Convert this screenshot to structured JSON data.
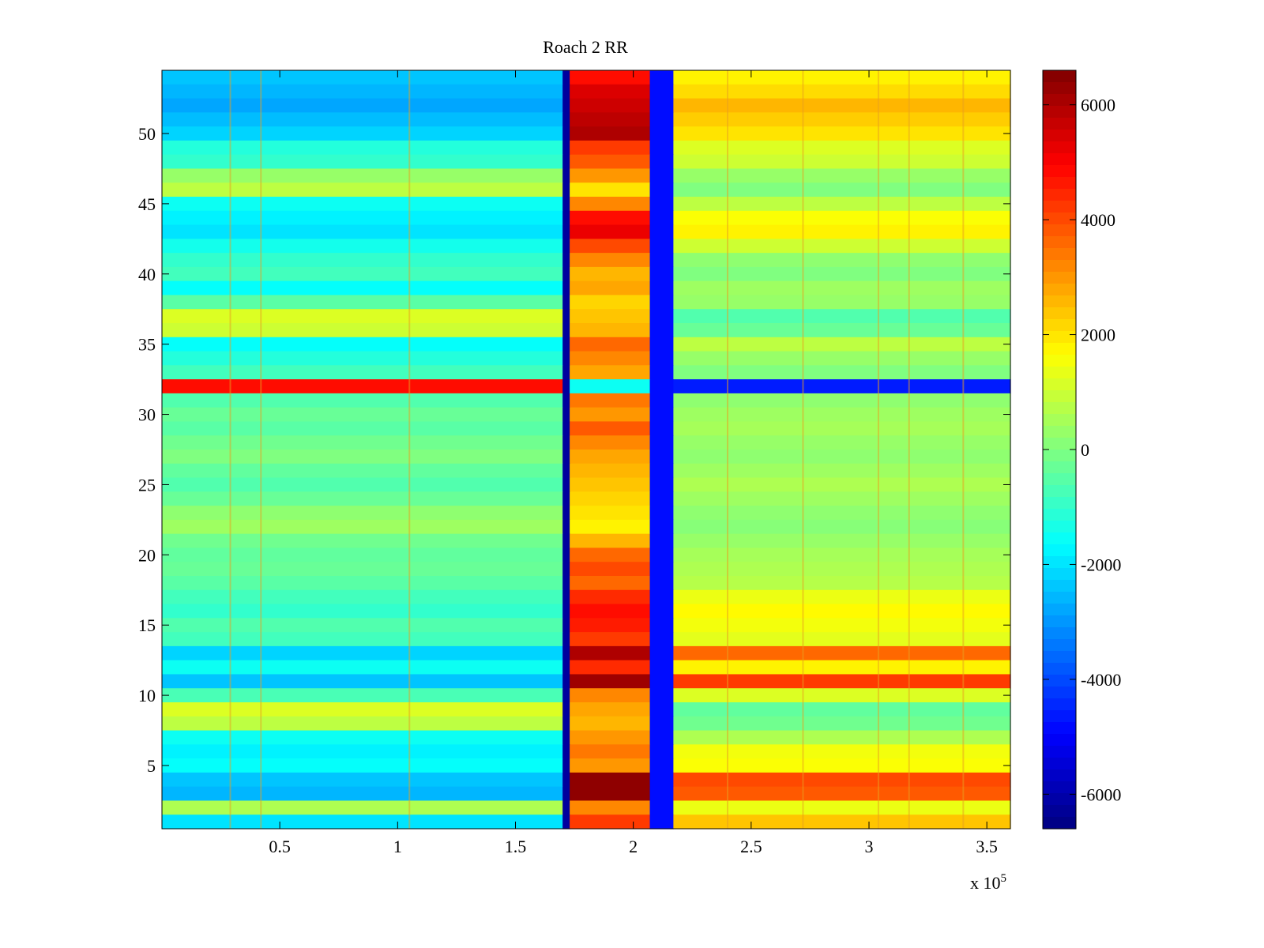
{
  "chart_data": {
    "type": "heatmap",
    "title": "Roach 2 RR",
    "xlabel": "",
    "ylabel": "",
    "x_exponent_label": "x 10",
    "x_exponent_power": "5",
    "xlim": [
      0,
      3.6
    ],
    "ylim": [
      0.5,
      54.5
    ],
    "x_ticks": [
      0.5,
      1,
      1.5,
      2,
      2.5,
      3,
      3.5
    ],
    "x_tick_labels": [
      "0.5",
      "1",
      "1.5",
      "2",
      "2.5",
      "3",
      "3.5"
    ],
    "y_ticks": [
      5,
      10,
      15,
      20,
      25,
      30,
      35,
      40,
      45,
      50
    ],
    "y_tick_labels": [
      "5",
      "10",
      "15",
      "20",
      "25",
      "30",
      "35",
      "40",
      "45",
      "50"
    ],
    "colorbar": {
      "clim": [
        -6600,
        6600
      ],
      "ticks": [
        -6000,
        -4000,
        -2000,
        0,
        2000,
        4000,
        6000
      ],
      "tick_labels": [
        "-6000",
        "-4000",
        "-2000",
        "0",
        "2000",
        "4000",
        "6000"
      ],
      "colormap": "jet"
    },
    "x_segments": [
      {
        "name": "left",
        "x_range": [
          0,
          1.7
        ]
      },
      {
        "name": "dip",
        "x_range": [
          1.7,
          1.73
        ]
      },
      {
        "name": "mid-high",
        "x_range": [
          1.73,
          2.07
        ]
      },
      {
        "name": "low",
        "x_range": [
          2.07,
          2.17
        ]
      },
      {
        "name": "right",
        "x_range": [
          2.17,
          3.6
        ]
      }
    ],
    "row_values": [
      {
        "row": 54,
        "left": -2400,
        "mid": 4800,
        "right": 1800
      },
      {
        "row": 53,
        "left": -2600,
        "mid": 5400,
        "right": 2100
      },
      {
        "row": 52,
        "left": -2800,
        "mid": 5600,
        "right": 2600
      },
      {
        "row": 51,
        "left": -2500,
        "mid": 5800,
        "right": 2300
      },
      {
        "row": 50,
        "left": -2200,
        "mid": 6000,
        "right": 2000
      },
      {
        "row": 49,
        "left": -1200,
        "mid": 4200,
        "right": 1200
      },
      {
        "row": 48,
        "left": -1000,
        "mid": 3800,
        "right": 1000
      },
      {
        "row": 47,
        "left": 300,
        "mid": 3000,
        "right": 300
      },
      {
        "row": 46,
        "left": 800,
        "mid": 2000,
        "right": 0
      },
      {
        "row": 45,
        "left": -1500,
        "mid": 3200,
        "right": 800
      },
      {
        "row": 44,
        "left": -1800,
        "mid": 4800,
        "right": 1600
      },
      {
        "row": 43,
        "left": -2000,
        "mid": 5200,
        "right": 1800
      },
      {
        "row": 42,
        "left": -1400,
        "mid": 4000,
        "right": 1000
      },
      {
        "row": 41,
        "left": -1000,
        "mid": 3200,
        "right": 200
      },
      {
        "row": 40,
        "left": -800,
        "mid": 2600,
        "right": 0
      },
      {
        "row": 39,
        "left": -1600,
        "mid": 2800,
        "right": 400
      },
      {
        "row": 38,
        "left": -500,
        "mid": 2200,
        "right": 300
      },
      {
        "row": 37,
        "left": 1200,
        "mid": 2400,
        "right": -600
      },
      {
        "row": 36,
        "left": 1000,
        "mid": 2600,
        "right": -300
      },
      {
        "row": 35,
        "left": -1600,
        "mid": 3600,
        "right": 800
      },
      {
        "row": 34,
        "left": -1200,
        "mid": 3200,
        "right": 300
      },
      {
        "row": 33,
        "left": -800,
        "mid": 2800,
        "right": 0
      },
      {
        "row": 32,
        "left": 4800,
        "mid": -1500,
        "right": -4600
      },
      {
        "row": 31,
        "left": -600,
        "mid": 3400,
        "right": 200
      },
      {
        "row": 30,
        "left": -300,
        "mid": 3000,
        "right": 400
      },
      {
        "row": 29,
        "left": -500,
        "mid": 3800,
        "right": 500
      },
      {
        "row": 28,
        "left": -200,
        "mid": 3200,
        "right": 300
      },
      {
        "row": 27,
        "left": 0,
        "mid": 2800,
        "right": 200
      },
      {
        "row": 26,
        "left": -400,
        "mid": 2600,
        "right": 400
      },
      {
        "row": 25,
        "left": -600,
        "mid": 2400,
        "right": 600
      },
      {
        "row": 24,
        "left": -300,
        "mid": 2200,
        "right": 400
      },
      {
        "row": 23,
        "left": 200,
        "mid": 2000,
        "right": 200
      },
      {
        "row": 22,
        "left": 400,
        "mid": 1800,
        "right": 100
      },
      {
        "row": 21,
        "left": -200,
        "mid": 2600,
        "right": 300
      },
      {
        "row": 20,
        "left": -400,
        "mid": 3600,
        "right": 500
      },
      {
        "row": 19,
        "left": -300,
        "mid": 4000,
        "right": 600
      },
      {
        "row": 18,
        "left": -500,
        "mid": 3600,
        "right": 700
      },
      {
        "row": 17,
        "left": -800,
        "mid": 4400,
        "right": 1400
      },
      {
        "row": 16,
        "left": -1000,
        "mid": 4800,
        "right": 1700
      },
      {
        "row": 15,
        "left": -600,
        "mid": 4600,
        "right": 1500
      },
      {
        "row": 14,
        "left": -800,
        "mid": 4200,
        "right": 1300
      },
      {
        "row": 13,
        "left": -2200,
        "mid": 6000,
        "right": 3600
      },
      {
        "row": 12,
        "left": -1500,
        "mid": 4400,
        "right": 1800
      },
      {
        "row": 11,
        "left": -2400,
        "mid": 6200,
        "right": 4200
      },
      {
        "row": 10,
        "left": -700,
        "mid": 3200,
        "right": 1200
      },
      {
        "row": 9,
        "left": 1200,
        "mid": 2800,
        "right": -400
      },
      {
        "row": 8,
        "left": 800,
        "mid": 2600,
        "right": -200
      },
      {
        "row": 7,
        "left": -1500,
        "mid": 3000,
        "right": 600
      },
      {
        "row": 6,
        "left": -1800,
        "mid": 3400,
        "right": 1500
      },
      {
        "row": 5,
        "left": -1600,
        "mid": 3000,
        "right": 1600
      },
      {
        "row": 4,
        "left": -2400,
        "mid": 6400,
        "right": 4000
      },
      {
        "row": 3,
        "left": -2600,
        "mid": 6400,
        "right": 3800
      },
      {
        "row": 2,
        "left": 600,
        "mid": 3200,
        "right": 1400
      },
      {
        "row": 1,
        "left": -2000,
        "mid": 4200,
        "right": 2400
      }
    ],
    "dip_value": -6200,
    "low_value": -4800,
    "vertical_streaks_x": [
      0.29,
      0.42,
      1.05,
      2.4,
      2.72,
      3.04,
      3.17,
      3.4
    ]
  }
}
